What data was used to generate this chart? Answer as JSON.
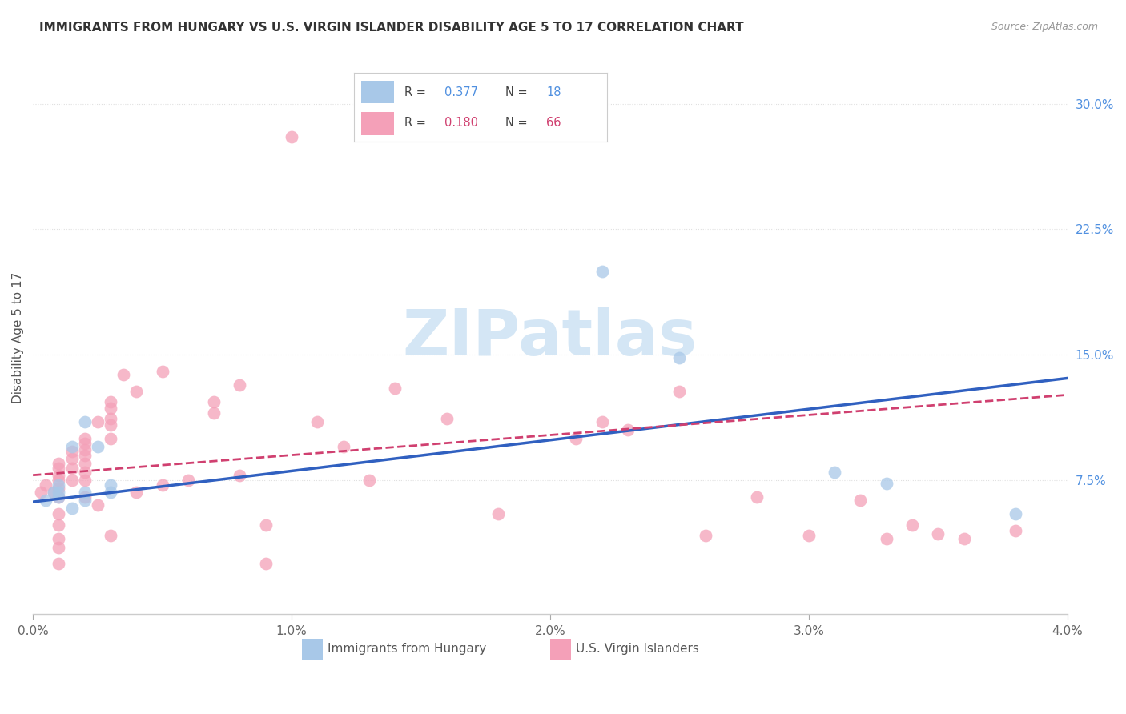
{
  "title": "IMMIGRANTS FROM HUNGARY VS U.S. VIRGIN ISLANDER DISABILITY AGE 5 TO 17 CORRELATION CHART",
  "source": "Source: ZipAtlas.com",
  "ylabel": "Disability Age 5 to 17",
  "xlim": [
    0.0,
    0.04
  ],
  "ylim": [
    -0.005,
    0.325
  ],
  "xticks": [
    0.0,
    0.01,
    0.02,
    0.03,
    0.04
  ],
  "xtick_labels": [
    "0.0%",
    "1.0%",
    "2.0%",
    "3.0%",
    "4.0%"
  ],
  "ytick_labels_right": [
    "7.5%",
    "15.0%",
    "22.5%",
    "30.0%"
  ],
  "ytick_values_right": [
    0.075,
    0.15,
    0.225,
    0.3
  ],
  "color_blue": "#a8c8e8",
  "color_pink": "#f4a0b8",
  "color_blue_line": "#3060c0",
  "color_pink_line": "#d04070",
  "color_title": "#333333",
  "color_source": "#999999",
  "color_right_axis": "#5090e0",
  "watermark_color": "#d0e4f4",
  "grid_color": "#e0e0e0",
  "blue_x": [
    0.0005,
    0.0008,
    0.001,
    0.001,
    0.001,
    0.0015,
    0.0015,
    0.002,
    0.002,
    0.002,
    0.0025,
    0.003,
    0.003,
    0.022,
    0.025,
    0.031,
    0.033,
    0.038
  ],
  "blue_y": [
    0.063,
    0.068,
    0.065,
    0.072,
    0.068,
    0.058,
    0.095,
    0.068,
    0.063,
    0.11,
    0.095,
    0.072,
    0.068,
    0.2,
    0.148,
    0.08,
    0.073,
    0.055
  ],
  "pink_x": [
    0.0003,
    0.0005,
    0.0008,
    0.001,
    0.001,
    0.001,
    0.001,
    0.001,
    0.001,
    0.001,
    0.001,
    0.001,
    0.001,
    0.001,
    0.0015,
    0.0015,
    0.0015,
    0.0015,
    0.002,
    0.002,
    0.002,
    0.002,
    0.002,
    0.002,
    0.002,
    0.002,
    0.0025,
    0.0025,
    0.003,
    0.003,
    0.003,
    0.003,
    0.003,
    0.003,
    0.0035,
    0.004,
    0.004,
    0.005,
    0.005,
    0.006,
    0.007,
    0.007,
    0.008,
    0.008,
    0.009,
    0.009,
    0.01,
    0.011,
    0.012,
    0.013,
    0.014,
    0.016,
    0.018,
    0.021,
    0.022,
    0.023,
    0.025,
    0.026,
    0.028,
    0.03,
    0.032,
    0.033,
    0.034,
    0.035,
    0.036,
    0.038
  ],
  "pink_y": [
    0.068,
    0.072,
    0.068,
    0.085,
    0.082,
    0.078,
    0.075,
    0.07,
    0.065,
    0.055,
    0.048,
    0.04,
    0.035,
    0.025,
    0.092,
    0.088,
    0.082,
    0.075,
    0.1,
    0.097,
    0.093,
    0.09,
    0.085,
    0.08,
    0.075,
    0.065,
    0.11,
    0.06,
    0.122,
    0.118,
    0.112,
    0.108,
    0.1,
    0.042,
    0.138,
    0.128,
    0.068,
    0.14,
    0.072,
    0.075,
    0.122,
    0.115,
    0.132,
    0.078,
    0.048,
    0.025,
    0.28,
    0.11,
    0.095,
    0.075,
    0.13,
    0.112,
    0.055,
    0.1,
    0.11,
    0.105,
    0.128,
    0.042,
    0.065,
    0.042,
    0.063,
    0.04,
    0.048,
    0.043,
    0.04,
    0.045
  ],
  "blue_line_x0": 0.0,
  "blue_line_y0": 0.062,
  "blue_line_x1": 0.04,
  "blue_line_y1": 0.136,
  "pink_line_x0": 0.0,
  "pink_line_y0": 0.078,
  "pink_line_x1": 0.04,
  "pink_line_y1": 0.126
}
